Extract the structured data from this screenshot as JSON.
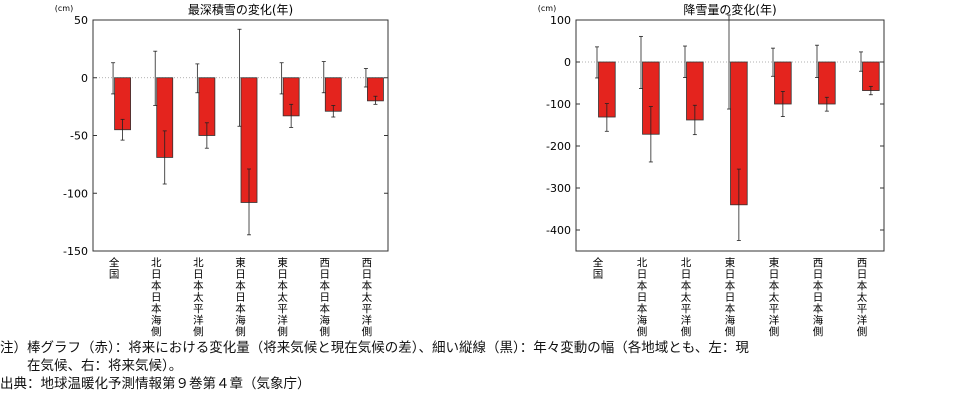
{
  "chart_data": [
    {
      "type": "bar",
      "title": "最深積雪の変化(年)",
      "unit": "(cm)",
      "ylim": [
        -150,
        50
      ],
      "yticks": [
        50,
        0,
        -50,
        -100,
        -150
      ],
      "categories": [
        "全国",
        "北日本日本海側",
        "北日本太平洋側",
        "東日本日本海側",
        "東日本太平洋側",
        "西日本日本海側",
        "西日本太平洋側"
      ],
      "bar_color": "#e4241e",
      "current_variability": [
        [
          -14,
          13
        ],
        [
          -24,
          23
        ],
        [
          -13,
          12
        ],
        [
          -42,
          42
        ],
        [
          -14,
          13
        ],
        [
          -13,
          14
        ],
        [
          -8,
          8
        ]
      ],
      "values": [
        -45,
        -69,
        -50,
        -108,
        -33,
        -29,
        -20
      ],
      "future_variability": [
        [
          -54,
          -36
        ],
        [
          -92,
          -46
        ],
        [
          -61,
          -39
        ],
        [
          -136,
          -79
        ],
        [
          -43,
          -23
        ],
        [
          -34,
          -24
        ],
        [
          -23,
          -16
        ]
      ]
    },
    {
      "type": "bar",
      "title": "降雪量の変化(年)",
      "unit": "(cm)",
      "ylim": [
        -450,
        100
      ],
      "yticks": [
        100,
        0,
        -100,
        -200,
        -300,
        -400
      ],
      "categories": [
        "全国",
        "北日本日本海側",
        "北日本太平洋側",
        "東日本日本海側",
        "東日本太平洋側",
        "西日本日本海側",
        "西日本太平洋側"
      ],
      "bar_color": "#e4241e",
      "current_variability": [
        [
          -38,
          36
        ],
        [
          -63,
          61
        ],
        [
          -37,
          38
        ],
        [
          -112,
          112
        ],
        [
          -34,
          33
        ],
        [
          -37,
          40
        ],
        [
          -22,
          24
        ]
      ],
      "values": [
        -131,
        -172,
        -138,
        -340,
        -100,
        -100,
        -68
      ],
      "future_variability": [
        [
          -165,
          -99
        ],
        [
          -238,
          -106
        ],
        [
          -173,
          -103
        ],
        [
          -425,
          -255
        ],
        [
          -130,
          -70
        ],
        [
          -117,
          -84
        ],
        [
          -78,
          -58
        ]
      ]
    }
  ],
  "notes": {
    "line1": "注）棒グラフ（赤）：将来における変化量（将来気候と現在気候の差）、細い縦線（黒）：年々変動の幅（各地域とも、左：現",
    "line2": "在気候、右：将来気候）。",
    "line3": "出典：地球温暖化予測情報第９巻第４章（気象庁）"
  }
}
